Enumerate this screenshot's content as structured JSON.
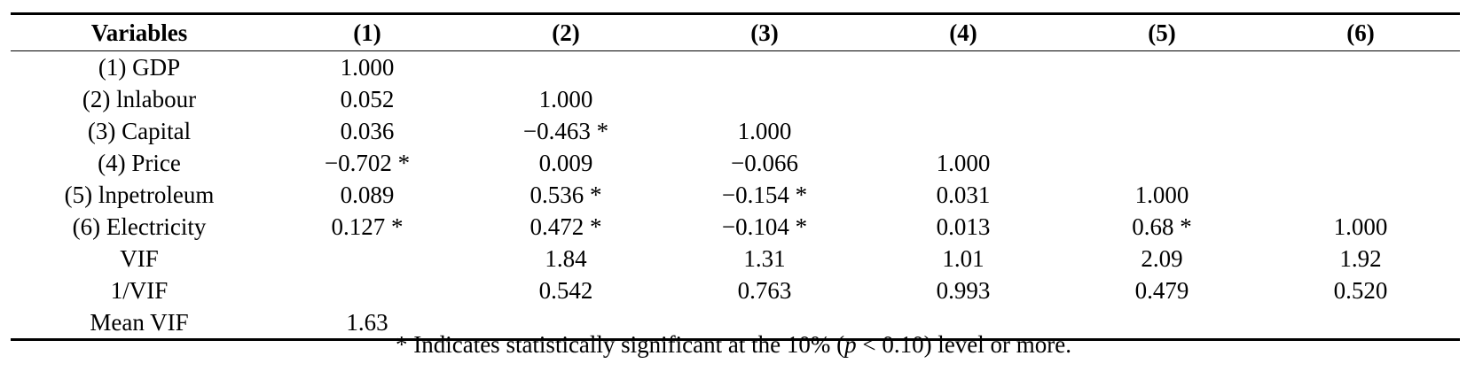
{
  "table": {
    "headers": [
      "Variables",
      "(1)",
      "(2)",
      "(3)",
      "(4)",
      "(5)",
      "(6)"
    ],
    "rows": [
      [
        "(1) GDP",
        "1.000",
        "",
        "",
        "",
        "",
        ""
      ],
      [
        "(2) lnlabour",
        "0.052",
        "1.000",
        "",
        "",
        "",
        ""
      ],
      [
        "(3) Capital",
        "0.036",
        "−0.463 *",
        "1.000",
        "",
        "",
        ""
      ],
      [
        "(4) Price",
        "−0.702 *",
        "0.009",
        "−0.066",
        "1.000",
        "",
        ""
      ],
      [
        "(5) lnpetroleum",
        "0.089",
        "0.536 *",
        "−0.154 *",
        "0.031",
        "1.000",
        ""
      ],
      [
        "(6) Electricity",
        "0.127 *",
        "0.472 *",
        "−0.104 *",
        "0.013",
        "0.68 *",
        "1.000"
      ],
      [
        "VIF",
        "",
        "1.84",
        "1.31",
        "1.01",
        "2.09",
        "1.92"
      ],
      [
        "1/VIF",
        "",
        "0.542",
        "0.763",
        "0.993",
        "0.479",
        "0.520"
      ],
      [
        "Mean VIF",
        "1.63",
        "",
        "",
        "",
        "",
        ""
      ]
    ]
  },
  "footnote": {
    "before": "* Indicates statistically significant at the 10% (",
    "p": "p",
    "after": " < 0.10) level or more."
  }
}
